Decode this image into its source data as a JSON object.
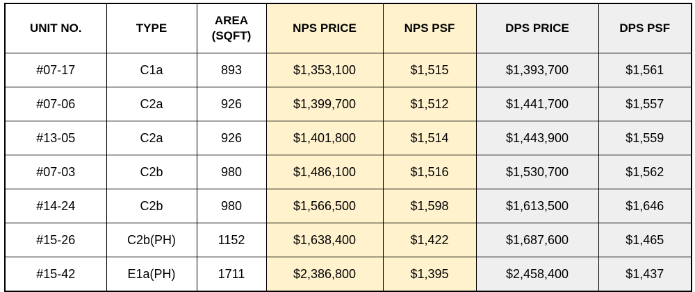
{
  "table": {
    "headers": {
      "unit": "UNIT NO.",
      "type": "TYPE",
      "area_line1": "AREA",
      "area_line2": "(SQFT)",
      "nps_price": "NPS PRICE",
      "nps_psf": "NPS PSF",
      "dps_price": "DPS PRICE",
      "dps_psf": "DPS PSF"
    },
    "rows": [
      {
        "unit": "#07-17",
        "type": "C1a",
        "area": "893",
        "nps_price": "$1,353,100",
        "nps_psf": "$1,515",
        "dps_price": "$1,393,700",
        "dps_psf": "$1,561"
      },
      {
        "unit": "#07-06",
        "type": "C2a",
        "area": "926",
        "nps_price": "$1,399,700",
        "nps_psf": "$1,512",
        "dps_price": "$1,441,700",
        "dps_psf": "$1,557"
      },
      {
        "unit": "#13-05",
        "type": "C2a",
        "area": "926",
        "nps_price": "$1,401,800",
        "nps_psf": "$1,514",
        "dps_price": "$1,443,900",
        "dps_psf": "$1,559"
      },
      {
        "unit": "#07-03",
        "type": "C2b",
        "area": "980",
        "nps_price": "$1,486,100",
        "nps_psf": "$1,516",
        "dps_price": "$1,530,700",
        "dps_psf": "$1,562"
      },
      {
        "unit": "#14-24",
        "type": "C2b",
        "area": "980",
        "nps_price": "$1,566,500",
        "nps_psf": "$1,598",
        "dps_price": "$1,613,500",
        "dps_psf": "$1,646"
      },
      {
        "unit": "#15-26",
        "type": "C2b(PH)",
        "area": "1152",
        "nps_price": "$1,638,400",
        "nps_psf": "$1,422",
        "dps_price": "$1,687,600",
        "dps_psf": "$1,465"
      },
      {
        "unit": "#15-42",
        "type": "E1a(PH)",
        "area": "1711",
        "nps_price": "$2,386,800",
        "nps_psf": "$1,395",
        "dps_price": "$2,458,400",
        "dps_psf": "$1,437"
      }
    ]
  },
  "colors": {
    "nps_fill": "#fff2cc",
    "dps_fill": "#efefef",
    "border": "#000000"
  }
}
